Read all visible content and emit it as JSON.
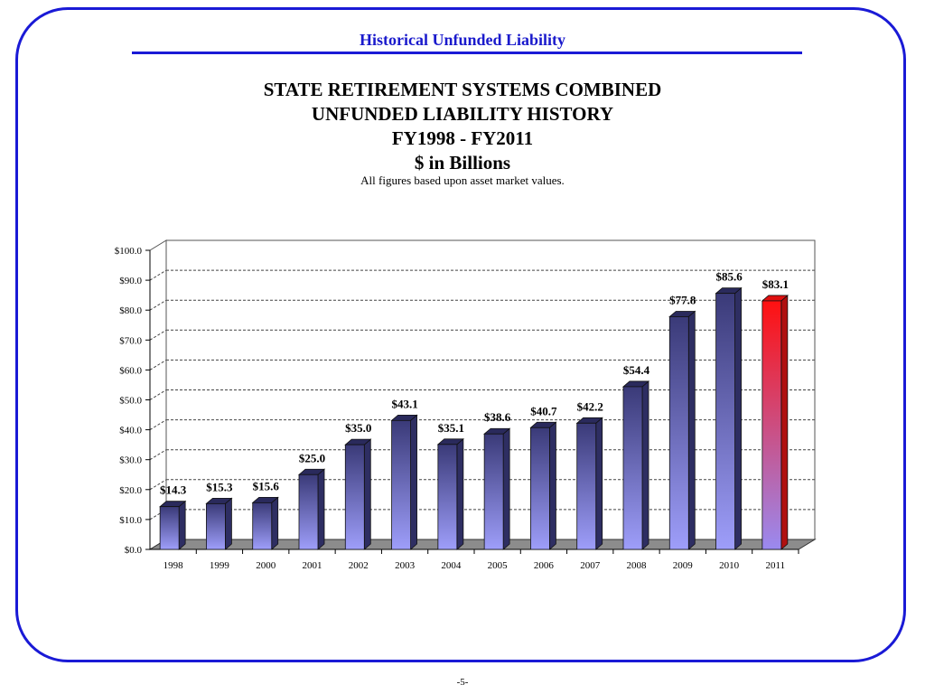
{
  "header": {
    "title": "Historical Unfunded Liability"
  },
  "chart_data": {
    "type": "bar",
    "title_lines": [
      "STATE RETIREMENT SYSTEMS COMBINED",
      "UNFUNDED LIABILITY HISTORY",
      "FY1998 - FY2011",
      "$ in Billions"
    ],
    "subtitle": "All figures based upon asset market values.",
    "categories": [
      "1998",
      "1999",
      "2000",
      "2001",
      "2002",
      "2003",
      "2004",
      "2005",
      "2006",
      "2007",
      "2008",
      "2009",
      "2010",
      "2011"
    ],
    "values": [
      14.3,
      15.3,
      15.6,
      25.0,
      35.0,
      43.1,
      35.1,
      38.6,
      40.7,
      42.2,
      54.4,
      77.8,
      85.6,
      83.1
    ],
    "value_labels": [
      "$14.3",
      "$15.3",
      "$15.6",
      "$25.0",
      "$35.0",
      "$43.1",
      "$35.1",
      "$38.6",
      "$40.7",
      "$42.2",
      "$54.4",
      "$77.8",
      "$85.6",
      "$83.1"
    ],
    "y_ticks": [
      0,
      10,
      20,
      30,
      40,
      50,
      60,
      70,
      80,
      90,
      100
    ],
    "y_tick_labels": [
      "$0.0",
      "$10.0",
      "$20.0",
      "$30.0",
      "$40.0",
      "$50.0",
      "$60.0",
      "$70.0",
      "$80.0",
      "$90.0",
      "$100.0"
    ],
    "ylim": [
      0,
      100
    ],
    "xlabel": "",
    "ylabel": "",
    "grid": true,
    "colors": {
      "bar_top": "#3a3a78",
      "bar_bottom": "#9e9efa",
      "highlight_top": "#ff1010",
      "highlight_bottom": "#9a8af0",
      "floor": "#8c8c8c"
    },
    "highlight_index": 13
  },
  "footer": {
    "page_number": "-5-"
  }
}
